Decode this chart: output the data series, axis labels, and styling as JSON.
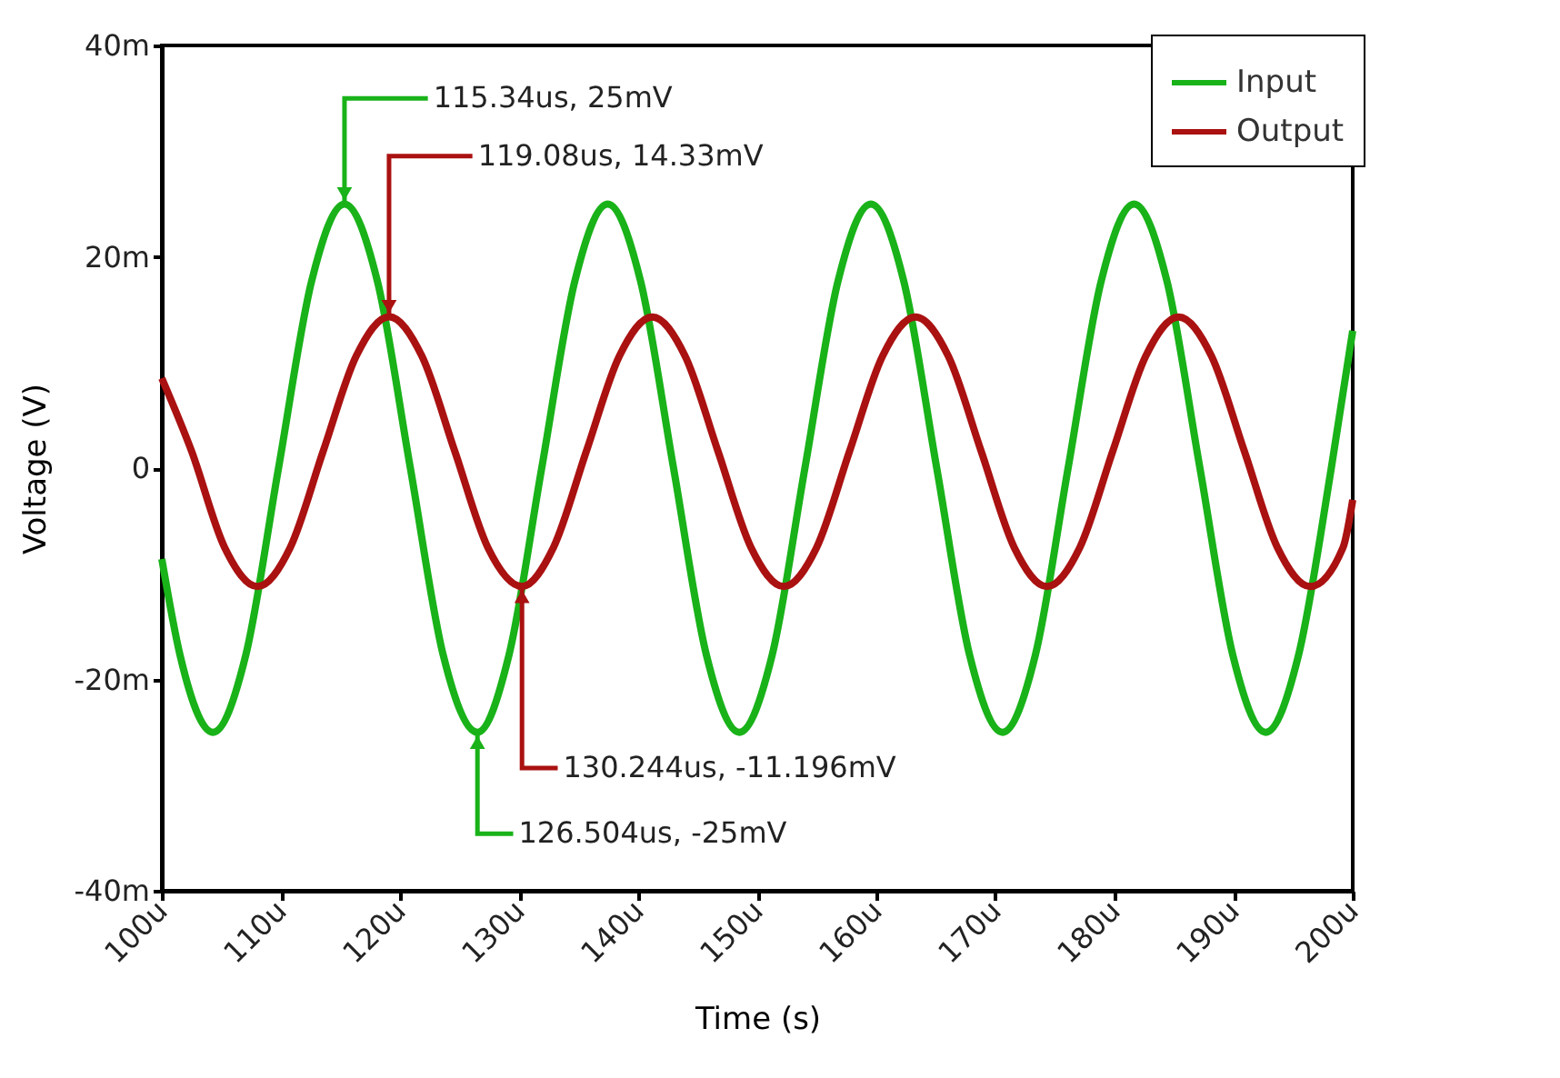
{
  "chart_data": {
    "type": "line",
    "xlabel": "Time (s)",
    "ylabel": "Voltage (V)",
    "xlim": [
      100,
      200
    ],
    "ylim": [
      -40,
      40
    ],
    "xticks": [
      {
        "value": 100,
        "label": "100u"
      },
      {
        "value": 110,
        "label": "110u"
      },
      {
        "value": 120,
        "label": "120u"
      },
      {
        "value": 130,
        "label": "130u"
      },
      {
        "value": 140,
        "label": "140u"
      },
      {
        "value": 150,
        "label": "150u"
      },
      {
        "value": 160,
        "label": "160u"
      },
      {
        "value": 170,
        "label": "170u"
      },
      {
        "value": 180,
        "label": "180u"
      },
      {
        "value": 190,
        "label": "190u"
      },
      {
        "value": 200,
        "label": "200u"
      }
    ],
    "yticks": [
      {
        "value": -40,
        "label": "-40m"
      },
      {
        "value": -20,
        "label": "-20m"
      },
      0,
      {
        "value": 20,
        "label": "20m"
      },
      {
        "value": 40,
        "label": "40m"
      }
    ],
    "grid": false,
    "legend": "top right",
    "series": [
      {
        "name": "Input",
        "color": "#19b219",
        "x": [
          100,
          101.53,
          104.29,
          107.05,
          109.8,
          112.58,
          115.34,
          118.1,
          120.87,
          123.63,
          126.504,
          129.15,
          131.9,
          134.68,
          137.44,
          140.2,
          142.97,
          145.73,
          148.49,
          151.25,
          154.0,
          156.78,
          159.54,
          162.3,
          165.07,
          167.83,
          170.59,
          173.35,
          176.1,
          178.88,
          181.64,
          184.4,
          187.17,
          189.93,
          192.69,
          195.45,
          198.2,
          200
        ],
        "values": [
          -8.6,
          -17.7,
          -25,
          -17.7,
          0,
          17.7,
          25,
          17.7,
          0,
          -17.7,
          -25,
          -17.7,
          0,
          17.7,
          25,
          17.7,
          0,
          -17.7,
          -25,
          -17.7,
          0,
          17.7,
          25,
          17.7,
          0,
          -17.7,
          -25,
          -17.7,
          0,
          17.7,
          25,
          17.7,
          0,
          -17.7,
          -25,
          -17.7,
          0,
          13
        ]
      },
      {
        "name": "Output",
        "color": "#aa1111",
        "x": [
          100,
          102.5,
          105.27,
          108.03,
          110.79,
          113.55,
          116.32,
          119.08,
          121.84,
          124.6,
          127.37,
          130.244,
          132.89,
          135.65,
          138.42,
          141.18,
          143.94,
          146.7,
          149.47,
          152.23,
          154.99,
          157.75,
          160.52,
          163.28,
          166.04,
          168.8,
          171.57,
          174.33,
          177.09,
          179.85,
          182.62,
          185.38,
          188.14,
          190.9,
          193.67,
          196.43,
          199.19,
          200
        ],
        "values": [
          8.5,
          1.6,
          -7.5,
          -11.2,
          -7.5,
          1.6,
          10.6,
          14.33,
          10.6,
          1.6,
          -7.5,
          -11.196,
          -7.5,
          1.6,
          10.6,
          14.3,
          10.6,
          1.6,
          -7.5,
          -11.2,
          -7.5,
          1.6,
          10.6,
          14.3,
          10.6,
          1.6,
          -7.5,
          -11.2,
          -7.5,
          1.6,
          10.6,
          14.3,
          10.6,
          1.6,
          -7.5,
          -11.2,
          -7.5,
          -3
        ]
      }
    ],
    "annotations": [
      {
        "text": "115.34us, 25mV",
        "x": 115.34,
        "y": 25
      },
      {
        "text": "119.08us, 14.33mV",
        "x": 119.08,
        "y": 14.33
      },
      {
        "text": "130.244us, -11.196mV",
        "x": 130.244,
        "y": -11.196
      },
      {
        "text": "126.504us, -25mV",
        "x": 126.504,
        "y": -25
      }
    ]
  }
}
